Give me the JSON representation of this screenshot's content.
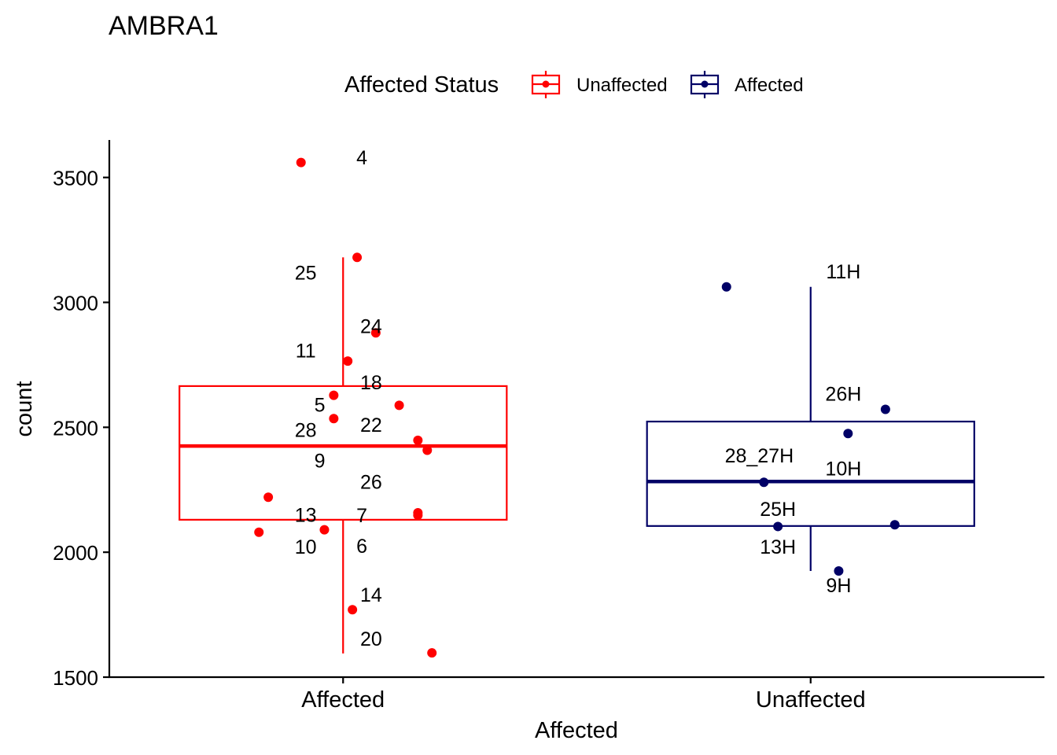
{
  "chart_data": {
    "type": "boxplot",
    "title": "AMBRA1",
    "xlabel": "Affected",
    "ylabel": "count",
    "ylim": [
      1500,
      3650
    ],
    "yticks": [
      1500,
      2000,
      2500,
      3000,
      3500
    ],
    "categories": [
      "Affected",
      "Unaffected"
    ],
    "legend": {
      "title": "Affected Status",
      "position": "top",
      "entries": [
        {
          "label": "Unaffected",
          "color": "#ff0000"
        },
        {
          "label": "Affected",
          "color": "#000066"
        }
      ]
    },
    "series": [
      {
        "name": "Unaffected",
        "category": "Affected",
        "color": "#ff0000",
        "box": {
          "whisker_low": 1595,
          "q1": 2130,
          "median": 2425,
          "q3": 2665,
          "whisker_high": 3180
        },
        "points": [
          {
            "label": "4",
            "value": 3560,
            "jitter": -0.09,
            "lx": 0.04,
            "ly": 3580
          },
          {
            "label": "25",
            "value": 3180,
            "jitter": 0.03,
            "lx": -0.08,
            "ly": 3120
          },
          {
            "label": "24",
            "value": 2878,
            "jitter": 0.07,
            "lx": 0.06,
            "ly": 2905
          },
          {
            "label": "11",
            "value": 2765,
            "jitter": 0.01,
            "lx": -0.08,
            "ly": 2808
          },
          {
            "label": "18",
            "value": 2628,
            "jitter": -0.02,
            "lx": 0.06,
            "ly": 2680
          },
          {
            "label": "5",
            "value": 2588,
            "jitter": 0.12,
            "lx": -0.05,
            "ly": 2590
          },
          {
            "label": "28",
            "value": 2535,
            "jitter": -0.02,
            "lx": -0.08,
            "ly": 2490
          },
          {
            "label": "22",
            "value": 2448,
            "jitter": 0.16,
            "lx": 0.06,
            "ly": 2510
          },
          {
            "label": "9",
            "value": 2408,
            "jitter": 0.18,
            "lx": -0.05,
            "ly": 2367
          },
          {
            "label": "26",
            "value": 2220,
            "jitter": -0.16,
            "lx": 0.06,
            "ly": 2283
          },
          {
            "label": "13",
            "value": 2158,
            "jitter": 0.16,
            "lx": -0.08,
            "ly": 2150
          },
          {
            "label": "7",
            "value": 2148,
            "jitter": 0.16,
            "lx": 0.04,
            "ly": 2148
          },
          {
            "label": "10",
            "value": 2090,
            "jitter": -0.04,
            "lx": -0.08,
            "ly": 2023
          },
          {
            "label": "6",
            "value": 2080,
            "jitter": -0.18,
            "lx": 0.04,
            "ly": 2025
          },
          {
            "label": "14",
            "value": 1770,
            "jitter": 0.02,
            "lx": 0.06,
            "ly": 1830
          },
          {
            "label": "20",
            "value": 1597,
            "jitter": 0.19,
            "lx": 0.06,
            "ly": 1655
          }
        ]
      },
      {
        "name": "Affected",
        "category": "Unaffected",
        "color": "#000066",
        "box": {
          "whisker_low": 1925,
          "q1": 2105,
          "median": 2283,
          "q3": 2523,
          "whisker_high": 3062
        },
        "points": [
          {
            "label": "11H",
            "value": 3062,
            "jitter": -0.18,
            "lx": 0.07,
            "ly": 3125
          },
          {
            "label": "26H",
            "value": 2572,
            "jitter": 0.16,
            "lx": 0.07,
            "ly": 2635
          },
          {
            "label": "10H",
            "value": 2475,
            "jitter": 0.08,
            "lx": 0.07,
            "ly": 2335
          },
          {
            "label": "28_27H",
            "value": 2280,
            "jitter": -0.1,
            "lx": -0.11,
            "ly": 2387
          },
          {
            "label": "25H",
            "value": 2110,
            "jitter": 0.18,
            "lx": -0.07,
            "ly": 2174
          },
          {
            "label": "13H",
            "value": 2103,
            "jitter": -0.07,
            "lx": -0.07,
            "ly": 2023
          },
          {
            "label": "9H",
            "value": 1925,
            "jitter": 0.06,
            "lx": 0.06,
            "ly": 1868
          }
        ]
      }
    ]
  }
}
